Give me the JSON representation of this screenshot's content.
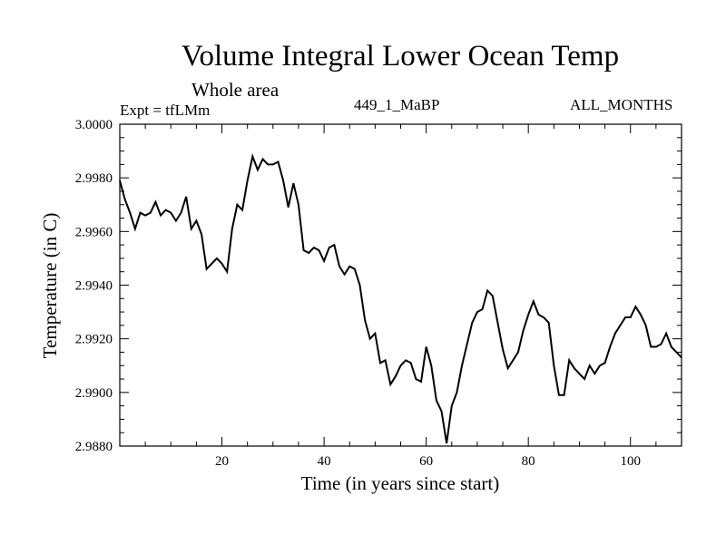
{
  "chart_data": {
    "type": "line",
    "title": "Volume Integral Lower Ocean Temp",
    "subtitle": "Whole area",
    "annotations": {
      "left": "Expt = tfLMm",
      "center": "449_1_MaBP",
      "right": "ALL_MONTHS"
    },
    "xlabel": "Time (in years since start)",
    "ylabel": "Temperature (in C)",
    "xlim": [
      0,
      110
    ],
    "ylim": [
      2.988,
      3.0
    ],
    "x_ticks": [
      20,
      40,
      60,
      80,
      100
    ],
    "y_ticks": [
      "2.9880",
      "2.9900",
      "2.9920",
      "2.9940",
      "2.9960",
      "2.9980",
      "3.0000"
    ],
    "series": [
      {
        "name": "Temperature",
        "x": [
          0,
          1,
          2,
          3,
          4,
          5,
          6,
          7,
          8,
          9,
          10,
          11,
          12,
          13,
          14,
          15,
          16,
          17,
          18,
          19,
          20,
          21,
          22,
          23,
          24,
          25,
          26,
          27,
          28,
          29,
          30,
          31,
          32,
          33,
          34,
          35,
          36,
          37,
          38,
          39,
          40,
          41,
          42,
          43,
          44,
          45,
          46,
          47,
          48,
          49,
          50,
          51,
          52,
          53,
          54,
          55,
          56,
          57,
          58,
          59,
          60,
          61,
          62,
          63,
          64,
          65,
          66,
          67,
          68,
          69,
          70,
          71,
          72,
          73,
          74,
          75,
          76,
          77,
          78,
          79,
          80,
          81,
          82,
          83,
          84,
          85,
          86,
          87,
          88,
          89,
          90,
          91,
          92,
          93,
          94,
          95,
          96,
          97,
          98,
          99,
          100,
          101,
          102,
          103,
          104,
          105,
          106,
          107,
          108,
          109,
          110
        ],
        "values": [
          2.9979,
          2.9972,
          2.9967,
          2.9961,
          2.9967,
          2.9966,
          2.9967,
          2.9971,
          2.9966,
          2.9968,
          2.9967,
          2.9964,
          2.9967,
          2.9973,
          2.9961,
          2.9964,
          2.9959,
          2.9946,
          2.9948,
          2.995,
          2.9948,
          2.9945,
          2.9961,
          2.997,
          2.9968,
          2.9979,
          2.9988,
          2.9983,
          2.9987,
          2.9985,
          2.9985,
          2.9986,
          2.9979,
          2.9969,
          2.9978,
          2.997,
          2.9953,
          2.9952,
          2.9954,
          2.9953,
          2.9949,
          2.9954,
          2.9955,
          2.9947,
          2.9944,
          2.9947,
          2.9946,
          2.994,
          2.9927,
          2.992,
          2.9922,
          2.9911,
          2.9912,
          2.9903,
          2.9906,
          2.991,
          2.9912,
          2.9911,
          2.9905,
          2.9904,
          2.9917,
          2.991,
          2.9897,
          2.9893,
          2.9881,
          2.9895,
          2.99,
          2.991,
          2.9918,
          2.9926,
          2.993,
          2.9931,
          2.9938,
          2.9936,
          2.9926,
          2.9916,
          2.9909,
          2.9912,
          2.9915,
          2.9923,
          2.9929,
          2.9934,
          2.9929,
          2.9928,
          2.9926,
          2.991,
          2.9899,
          2.9899,
          2.9912,
          2.9909,
          2.9907,
          2.9905,
          2.991,
          2.9907,
          2.991,
          2.9911,
          2.9917,
          2.9922,
          2.9925,
          2.9928,
          2.9928,
          2.9932,
          2.9929,
          2.9925,
          2.9917,
          2.9917,
          2.9918,
          2.9922,
          2.9917,
          2.9915,
          2.9913
        ]
      }
    ]
  }
}
